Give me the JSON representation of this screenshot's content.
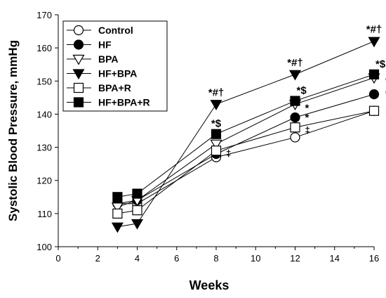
{
  "chart_data": {
    "type": "line",
    "xlabel": "Weeks",
    "ylabel": "Systolic Blood Pressure, mmHg",
    "xlim": [
      0,
      16
    ],
    "ylim": [
      100,
      170
    ],
    "xticks": [
      "0",
      "2",
      "4",
      "6",
      "8",
      "10",
      "12",
      "14",
      "16"
    ],
    "yticks": [
      "100",
      "110",
      "120",
      "130",
      "140",
      "150",
      "160",
      "170"
    ],
    "grid": false,
    "legend_position": "top-left",
    "series": [
      {
        "name": "Control",
        "marker": "circle",
        "fill": "open",
        "x": [
          3,
          4,
          8,
          12,
          16
        ],
        "y": [
          113,
          113,
          127,
          133,
          141
        ]
      },
      {
        "name": "HF",
        "marker": "circle",
        "fill": "filled",
        "x": [
          3,
          4,
          8,
          12,
          16
        ],
        "y": [
          113,
          114,
          128,
          139,
          146
        ]
      },
      {
        "name": "BPA",
        "marker": "triangle-down",
        "fill": "open",
        "x": [
          3,
          4,
          8,
          12,
          16
        ],
        "y": [
          112,
          114,
          131,
          143,
          151
        ]
      },
      {
        "name": "HF+BPA",
        "marker": "triangle-down",
        "fill": "filled",
        "x": [
          3,
          4,
          8,
          12,
          16
        ],
        "y": [
          106,
          107,
          143,
          152,
          162
        ]
      },
      {
        "name": "BPA+R",
        "marker": "square",
        "fill": "open",
        "x": [
          3,
          4,
          8,
          12,
          16
        ],
        "y": [
          110,
          111,
          129,
          136,
          141
        ]
      },
      {
        "name": "HF+BPA+R",
        "marker": "square",
        "fill": "filled",
        "x": [
          3,
          4,
          8,
          12,
          16
        ],
        "y": [
          115,
          116,
          134,
          144,
          152
        ]
      }
    ],
    "annotations": [
      {
        "text": "*#†",
        "x": 8,
        "y": 143,
        "series": "HF+BPA"
      },
      {
        "text": "*$",
        "x": 8,
        "y": 134,
        "series": "HF+BPA+R"
      },
      {
        "text": "‡",
        "x": 8,
        "y": 129,
        "series": "BPA+R"
      },
      {
        "text": "*#†",
        "x": 12,
        "y": 152,
        "series": "HF+BPA"
      },
      {
        "text": "*$",
        "x": 12,
        "y": 144,
        "series": "HF+BPA+R"
      },
      {
        "text": "*",
        "x": 12,
        "y": 143,
        "series": "BPA"
      },
      {
        "text": "*",
        "x": 12,
        "y": 139,
        "series": "HF"
      },
      {
        "text": "‡",
        "x": 12,
        "y": 136,
        "series": "BPA+R"
      },
      {
        "text": "*#†",
        "x": 16,
        "y": 162,
        "series": "HF+BPA"
      },
      {
        "text": "*$",
        "x": 16,
        "y": 152,
        "series": "HF+BPA+R"
      },
      {
        "text": "*",
        "x": 16,
        "y": 151,
        "series": "BPA"
      },
      {
        "text": "*",
        "x": 16,
        "y": 146,
        "series": "HF"
      },
      {
        "text": "‡",
        "x": 16,
        "y": 141,
        "series": "BPA+R"
      }
    ]
  }
}
